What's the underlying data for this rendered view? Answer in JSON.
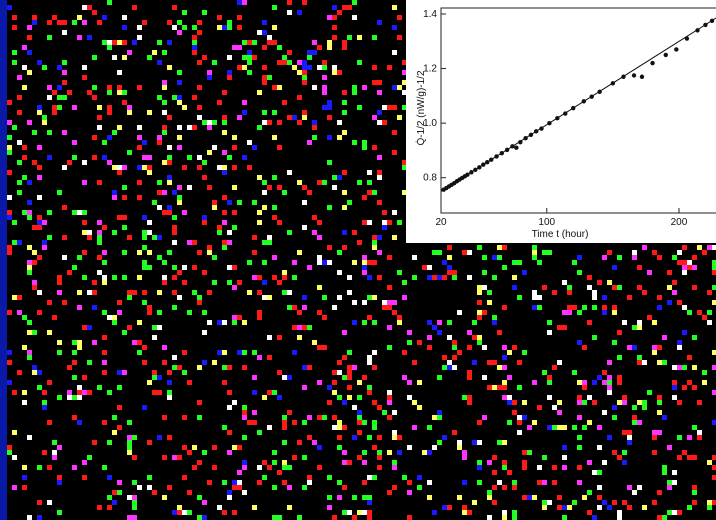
{
  "chart_data": {
    "type": "scatter",
    "xlabel": "Time t (hour)",
    "ylabel": "Q̇-1/2 (nW/g)-1/2",
    "x": [
      22,
      24,
      26,
      28,
      30,
      32,
      34,
      36,
      38,
      40,
      43,
      46,
      49,
      52,
      55,
      58,
      62,
      66,
      70,
      74,
      77,
      80,
      84,
      88,
      92,
      96,
      102,
      108,
      114,
      120,
      128,
      134,
      140,
      150,
      158,
      166,
      172,
      180,
      190,
      198,
      206,
      214,
      220,
      225
    ],
    "values": [
      0.756,
      0.762,
      0.768,
      0.774,
      0.78,
      0.787,
      0.793,
      0.799,
      0.805,
      0.811,
      0.82,
      0.829,
      0.838,
      0.848,
      0.857,
      0.866,
      0.878,
      0.89,
      0.902,
      0.915,
      0.91,
      0.93,
      0.945,
      0.957,
      0.97,
      0.98,
      1.0,
      1.018,
      1.035,
      1.055,
      1.08,
      1.097,
      1.115,
      1.146,
      1.17,
      1.175,
      1.17,
      1.22,
      1.25,
      1.27,
      1.31,
      1.34,
      1.36,
      1.375
    ],
    "fit_x": [
      20,
      228
    ],
    "fit_values": [
      0.75,
      1.385
    ],
    "color": "#111111",
    "xlim": [
      20,
      228
    ],
    "xticks": [
      20,
      100,
      200
    ],
    "ylim": [
      0.7,
      1.4
    ],
    "yticks": [
      0.8,
      {
        "value": 1,
        "label": "1.0"
      },
      1.2,
      1.4
    ]
  }
}
